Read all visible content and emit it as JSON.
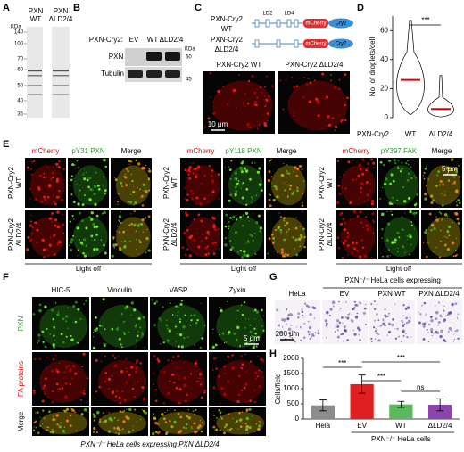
{
  "panel_labels": [
    "A",
    "B",
    "C",
    "D",
    "E",
    "F",
    "G",
    "H"
  ],
  "panel_a": {
    "lanes": [
      [
        "PXN",
        "WT"
      ],
      [
        "PXN",
        "ΔLD2/4"
      ]
    ],
    "unit": "KDa",
    "markers": [
      "140",
      "100",
      "70",
      "60",
      "50",
      "40",
      "35"
    ]
  },
  "panel_b": {
    "prefix": "PXN-Cry2:",
    "lanes": [
      "EV",
      "WT",
      "ΔLD2/4"
    ],
    "rows": [
      "PXN",
      "Tubulin"
    ],
    "unit": "KDa",
    "markers": [
      "60",
      "45"
    ]
  },
  "panel_c": {
    "constructs": [
      [
        "PXN-Cry2",
        "WT"
      ],
      [
        "PXN-Cry2",
        "ΔLD2/4"
      ]
    ],
    "domains": [
      "LD2",
      "LD4"
    ],
    "tags": [
      "mCherry",
      "Cry2"
    ],
    "images": [
      "PXN-Cry2 WT",
      "PXN-Cry2 ΔLD2/4"
    ],
    "scale": "10 μm"
  },
  "panel_d": {
    "y_label": "No. of droplets/cell",
    "x_title": "PXN-Cry2",
    "categories": [
      "WT",
      "ΔLD2/4"
    ],
    "medians": [
      26,
      6
    ],
    "ylim": [
      0,
      70
    ],
    "yticks": [
      0,
      20,
      40,
      60
    ],
    "significance": "***"
  },
  "panel_e": {
    "groups": [
      [
        "mCherry",
        "pY31 PXN",
        "Merge"
      ],
      [
        "mCherry",
        "pY118 PXN",
        "Merge"
      ],
      [
        "mCherry",
        "pY397 FAK",
        "Merge"
      ]
    ],
    "rows": [
      [
        "PXN-Cry2",
        "WT"
      ],
      [
        "PXN-Cry2",
        "ΔLD2/4"
      ]
    ],
    "footer": "Light off",
    "scale": "5 μm"
  },
  "panel_f": {
    "columns": [
      "HIC-5",
      "Vinculin",
      "VASP",
      "Zyxin"
    ],
    "rows": [
      "PXN",
      "FA proteins",
      "Merge"
    ],
    "caption": "PXN⁻/⁻ HeLa cells expressing PXN ΔLD2/4",
    "scale": "5 μm"
  },
  "panel_g": {
    "header": "PXN⁻/⁻ HeLa cells expressing",
    "columns": [
      "HeLa",
      "EV",
      "PXN WT",
      "PXN ΔLD2/4"
    ],
    "scale": "200 μm"
  },
  "panel_h": {
    "y_label": "Cells/field",
    "categories": [
      "Hela",
      "EV",
      "WT",
      "ΔLD2/4"
    ],
    "group_label": "PXN⁻/⁻ HeLa cells",
    "values": [
      450,
      1150,
      480,
      470
    ],
    "errors": [
      180,
      300,
      100,
      200
    ],
    "colors": [
      "#8c8c8c",
      "#e02020",
      "#5cb85c",
      "#8e44ad"
    ],
    "ylim": [
      0,
      2000
    ],
    "yticks": [
      0,
      500,
      1000,
      1500,
      2000
    ],
    "significance": [
      "***",
      "***",
      "***",
      "ns"
    ]
  }
}
